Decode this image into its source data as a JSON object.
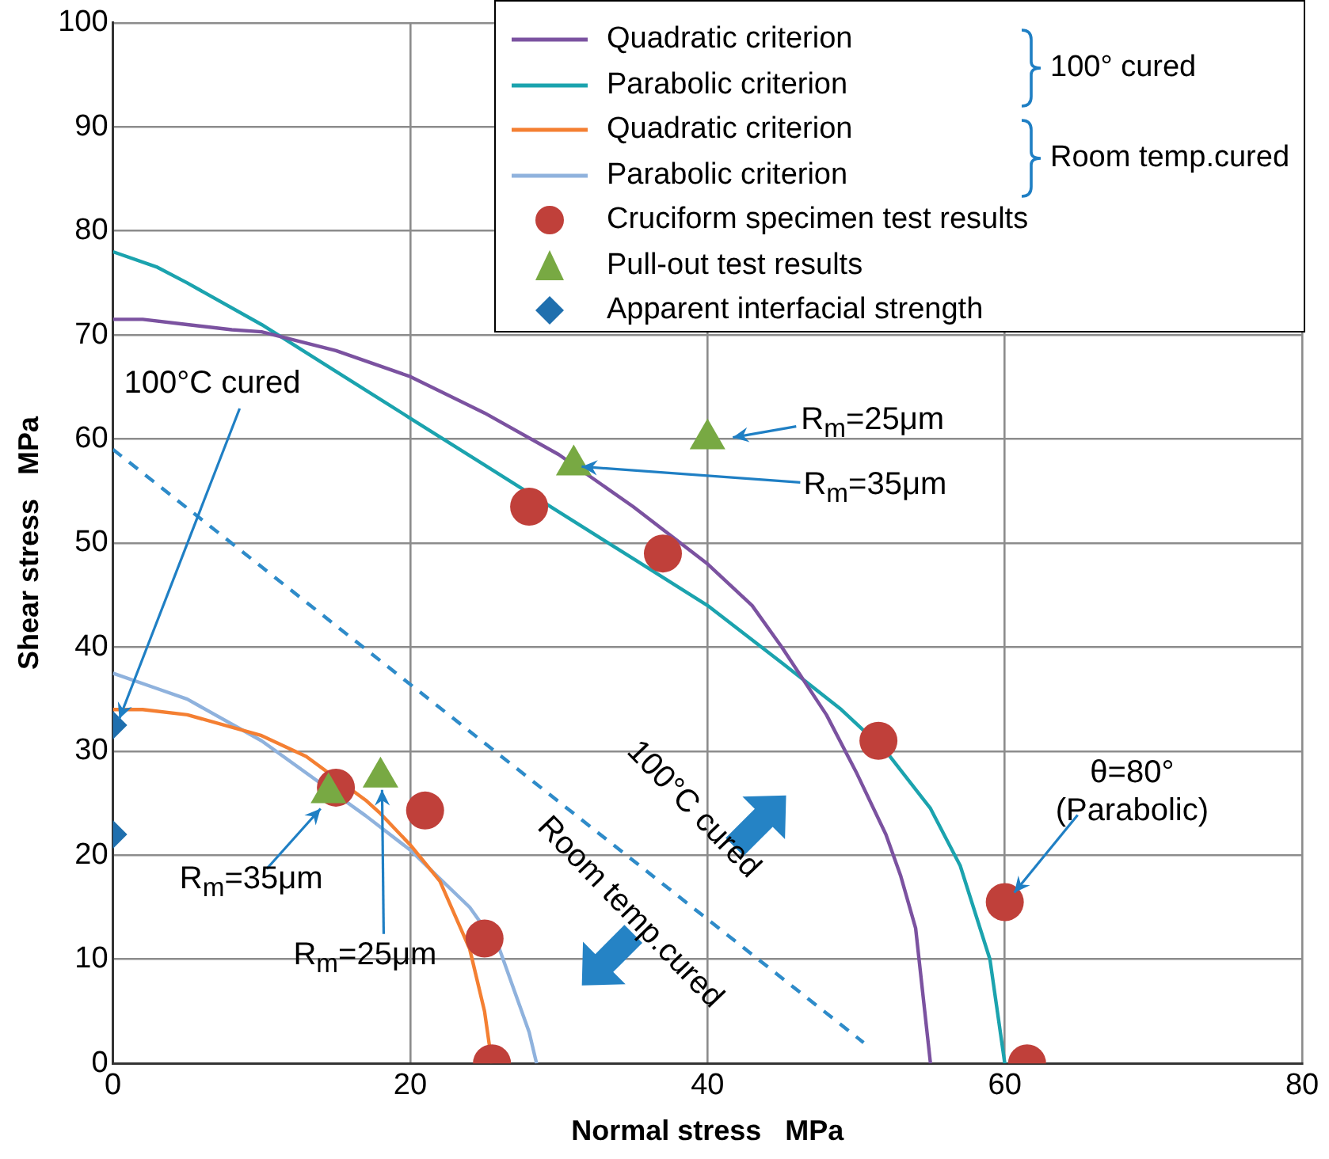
{
  "chart_data": {
    "type": "line",
    "xlabel": "Normal stress   MPa",
    "ylabel": "Shear stress   MPa",
    "xlim": [
      0,
      80
    ],
    "xticks": [
      0,
      20,
      40,
      60,
      80
    ],
    "ylim": [
      0,
      100
    ],
    "yticks": [
      0,
      10,
      20,
      30,
      40,
      50,
      60,
      70,
      80,
      90,
      100
    ],
    "grid": true,
    "legend": "top right",
    "series": [
      {
        "name": "Quadratic criterion",
        "color": "#7b52a0",
        "marker": "none",
        "x": [
          0,
          2,
          5,
          8,
          10,
          15,
          20,
          25,
          30,
          35,
          40,
          43,
          45,
          48,
          50,
          52,
          53,
          54,
          55
        ],
        "values": [
          71.5,
          71.5,
          71,
          70.5,
          70.3,
          68.5,
          66,
          62.5,
          58.5,
          53.5,
          48,
          44,
          40,
          33.5,
          28,
          22,
          18,
          13,
          0
        ]
      },
      {
        "name": "Parabolic criterion",
        "color": "#1ba3ae",
        "marker": "none",
        "x": [
          0,
          3,
          5,
          10,
          15,
          20,
          25,
          30,
          35,
          40,
          45,
          49,
          52,
          55,
          57,
          59,
          60
        ],
        "values": [
          78,
          76.5,
          75,
          71,
          66.5,
          62,
          57.5,
          53,
          48.5,
          44,
          38.5,
          34,
          30,
          24.5,
          19,
          10,
          0
        ]
      },
      {
        "name": "Quadratic criterion",
        "color": "#f47f32",
        "marker": "none",
        "x": [
          0,
          2,
          5,
          10,
          13,
          17,
          18,
          20,
          22,
          24,
          25,
          25.5
        ],
        "values": [
          34,
          34,
          33.5,
          31.5,
          29.5,
          25.3,
          24,
          21,
          17.5,
          11,
          5,
          0
        ]
      },
      {
        "name": "Parabolic criterion",
        "color": "#8fb2dd",
        "marker": "none",
        "x": [
          0,
          3,
          5,
          10,
          17,
          20,
          24,
          26,
          27,
          28,
          28.5
        ],
        "values": [
          37.5,
          36,
          35,
          31,
          23.8,
          20.5,
          15,
          11,
          7,
          3,
          0
        ]
      },
      {
        "name": "Cruciform specimen test results",
        "type": "scatter",
        "color": "#c0403a",
        "marker": "circle",
        "x": [
          15,
          21,
          25,
          25.5,
          28,
          37,
          51.5,
          60,
          61.5
        ],
        "values": [
          26.5,
          24.3,
          12,
          0,
          53.5,
          49,
          31,
          15.5,
          0
        ]
      },
      {
        "name": "Pull-out test results",
        "type": "scatter",
        "color": "#78a943",
        "marker": "triangle",
        "x": [
          14.5,
          18,
          31,
          40
        ],
        "values": [
          26,
          27.5,
          57.5,
          60
        ]
      },
      {
        "name": "Apparent interfacial strength",
        "type": "scatter",
        "color": "#1f6fae",
        "marker": "diamond",
        "x": [
          0,
          0
        ],
        "values": [
          32.5,
          22
        ]
      },
      {
        "color": "#2e8bc9",
        "marker": "none",
        "line_style": "dashed",
        "x": [
          0,
          50.5
        ],
        "values": [
          59,
          2
        ]
      }
    ],
    "annotations": [
      "100°   cured",
      "Room temp.cured",
      {
        "text": "100°C cured",
        "x": 0,
        "y": 32.5
      },
      {
        "text": "R$_{m}$=25μm",
        "x": 40,
        "y": 60
      },
      {
        "text": "R$_{m}$=35μm",
        "x": 31,
        "y": 57.5
      },
      {
        "text": "θ=80°\n(Parabolic)",
        "x": 60,
        "y": 15.5
      },
      {
        "text": "R$_{m}$=35μm",
        "x": 14.5,
        "y": 26
      },
      {
        "text": "R$_{m}$=25μm",
        "x": 18,
        "y": 27.5
      },
      "100°C cured",
      "Room temp.cured"
    ]
  }
}
